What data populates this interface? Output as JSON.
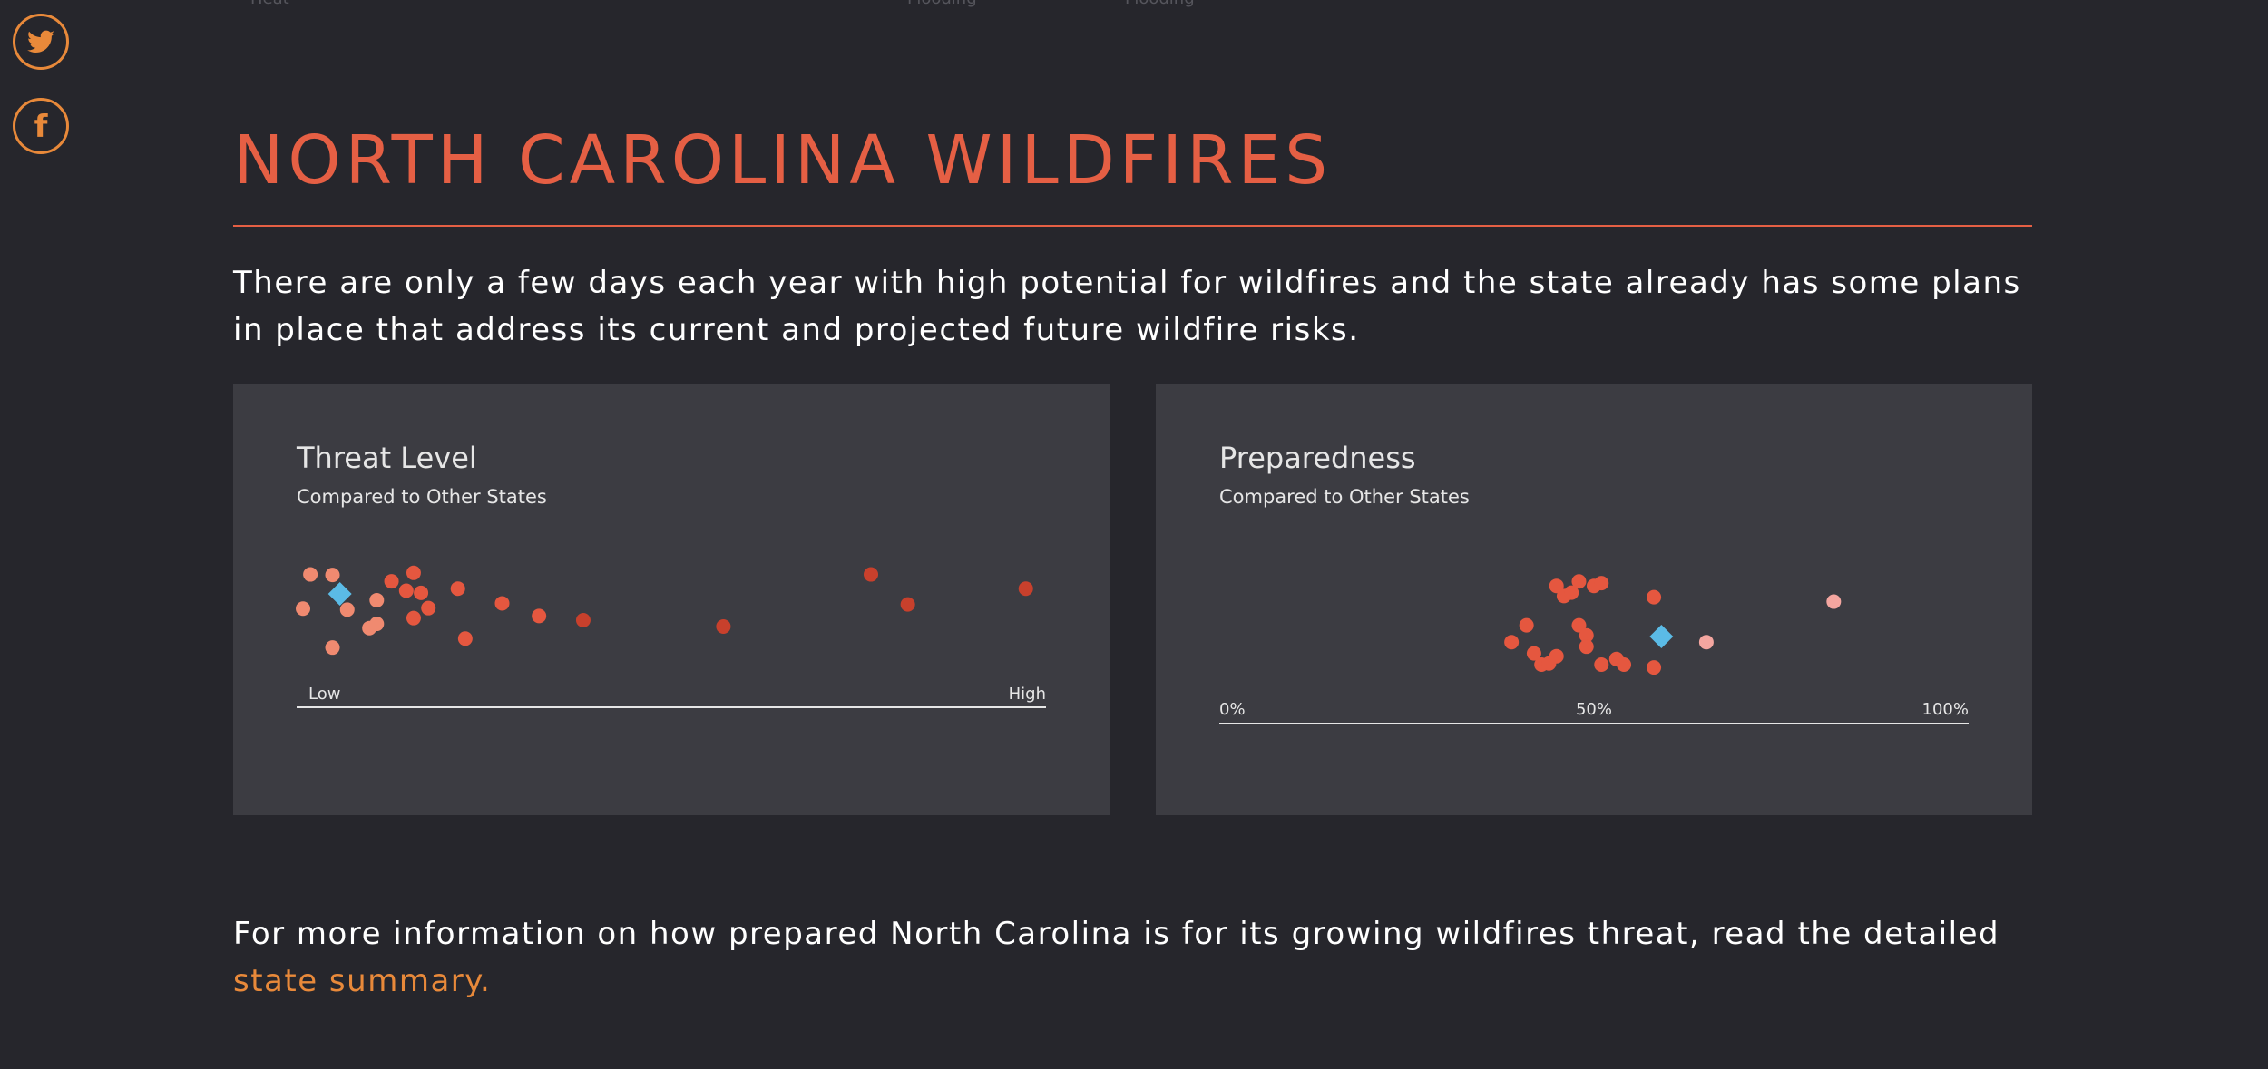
{
  "top_fragments": [
    "Heat",
    "Flooding",
    "Flooding"
  ],
  "social": {
    "twitter_icon": "twitter-icon",
    "facebook_icon": "facebook-icon",
    "color": "#e8893a"
  },
  "section": {
    "title": "NORTH CAROLINA WILDFIRES",
    "intro": "There are only a few days each year with high potential for wildfires and the state already has some plans in place that address its current and projected future wildfire risks."
  },
  "colors": {
    "accent": "#e55f44",
    "link": "#e8893a",
    "highlight": "#5bbbe6",
    "panel_bg": "#3c3c42",
    "page_bg": "#26262c"
  },
  "chart_data": [
    {
      "type": "scatter",
      "title": "Threat Level",
      "subtitle": "Compared to Other States",
      "axis_labels": {
        "low": "Low",
        "high": "High"
      },
      "xlim": [
        0,
        1
      ],
      "note": "Strip plot; one dot per state, jittered vertically; highlighted diamond = North Carolina",
      "points": [
        {
          "x": 0.01,
          "y": 0.87,
          "shade": "light"
        },
        {
          "x": 0.04,
          "y": 0.86,
          "shade": "light"
        },
        {
          "x": 0.0,
          "y": 0.22,
          "shade": "light"
        },
        {
          "x": 0.06,
          "y": 0.2,
          "shade": "light"
        },
        {
          "x": 0.04,
          "y": -0.52,
          "shade": "light"
        },
        {
          "x": 0.09,
          "y": -0.15,
          "shade": "light"
        },
        {
          "x": 0.1,
          "y": -0.07,
          "shade": "light"
        },
        {
          "x": 0.1,
          "y": 0.38,
          "shade": "light"
        },
        {
          "x": 0.12,
          "y": 0.74,
          "shade": "medium"
        },
        {
          "x": 0.14,
          "y": 0.56,
          "shade": "medium"
        },
        {
          "x": 0.15,
          "y": 0.9,
          "shade": "medium"
        },
        {
          "x": 0.16,
          "y": 0.52,
          "shade": "medium"
        },
        {
          "x": 0.15,
          "y": 0.04,
          "shade": "medium"
        },
        {
          "x": 0.17,
          "y": 0.23,
          "shade": "medium"
        },
        {
          "x": 0.21,
          "y": 0.6,
          "shade": "medium"
        },
        {
          "x": 0.22,
          "y": -0.35,
          "shade": "medium"
        },
        {
          "x": 0.27,
          "y": 0.32,
          "shade": "medium"
        },
        {
          "x": 0.32,
          "y": 0.08,
          "shade": "medium"
        },
        {
          "x": 0.38,
          "y": 0.0,
          "shade": "dark"
        },
        {
          "x": 0.57,
          "y": -0.12,
          "shade": "dark"
        },
        {
          "x": 0.77,
          "y": 0.87,
          "shade": "dark"
        },
        {
          "x": 0.82,
          "y": 0.3,
          "shade": "dark"
        },
        {
          "x": 0.98,
          "y": 0.6,
          "shade": "dark"
        }
      ],
      "highlight": {
        "x": 0.05,
        "y": 0.5,
        "label": "North Carolina"
      }
    },
    {
      "type": "scatter",
      "title": "Preparedness",
      "subtitle": "Compared to Other States",
      "ticks": [
        "0%",
        "50%",
        "100%"
      ],
      "xlim": [
        0,
        100
      ],
      "note": "Strip plot; one dot per state, jittered vertically; highlighted diamond = North Carolina",
      "points": [
        {
          "x": 39,
          "y": -0.1,
          "shade": "medium"
        },
        {
          "x": 41,
          "y": 0.2,
          "shade": "medium"
        },
        {
          "x": 42,
          "y": -0.3,
          "shade": "medium"
        },
        {
          "x": 43,
          "y": -0.5,
          "shade": "medium"
        },
        {
          "x": 44,
          "y": -0.48,
          "shade": "medium"
        },
        {
          "x": 45,
          "y": -0.35,
          "shade": "medium"
        },
        {
          "x": 45,
          "y": 0.9,
          "shade": "medium"
        },
        {
          "x": 46,
          "y": 0.72,
          "shade": "medium"
        },
        {
          "x": 47,
          "y": 0.78,
          "shade": "medium"
        },
        {
          "x": 48,
          "y": 0.98,
          "shade": "medium"
        },
        {
          "x": 48,
          "y": 0.2,
          "shade": "medium"
        },
        {
          "x": 49,
          "y": 0.02,
          "shade": "medium"
        },
        {
          "x": 49,
          "y": -0.18,
          "shade": "medium"
        },
        {
          "x": 50,
          "y": 0.9,
          "shade": "medium"
        },
        {
          "x": 51,
          "y": 0.95,
          "shade": "medium"
        },
        {
          "x": 51,
          "y": -0.5,
          "shade": "medium"
        },
        {
          "x": 53,
          "y": -0.4,
          "shade": "medium"
        },
        {
          "x": 54,
          "y": -0.5,
          "shade": "medium"
        },
        {
          "x": 58,
          "y": -0.55,
          "shade": "medium"
        },
        {
          "x": 58,
          "y": 0.7,
          "shade": "medium"
        },
        {
          "x": 65,
          "y": -0.1,
          "shade": "light"
        },
        {
          "x": 82,
          "y": 0.62,
          "shade": "light"
        }
      ],
      "highlight": {
        "x": 59,
        "y": 0.0,
        "label": "North Carolina"
      }
    }
  ],
  "footer": {
    "text": "For more information on how prepared North Carolina is for its growing wildfires threat, read the detailed ",
    "link": "state summary."
  }
}
